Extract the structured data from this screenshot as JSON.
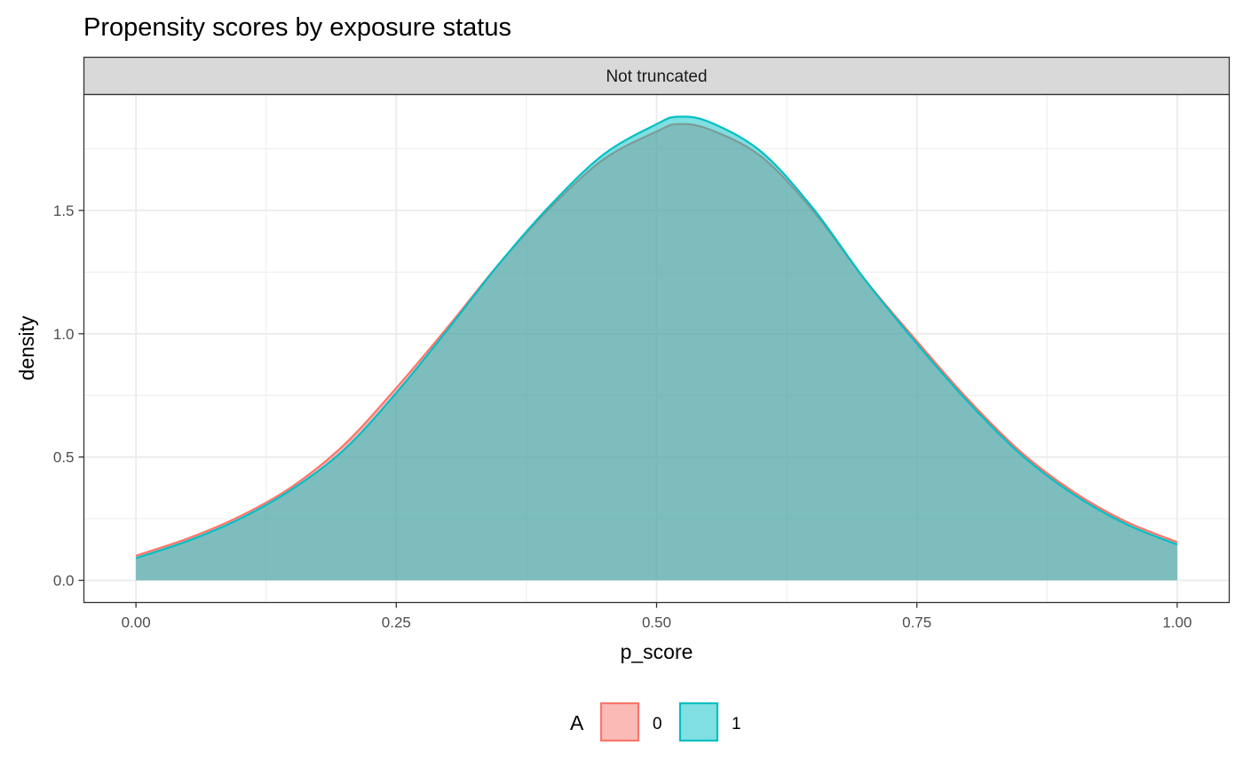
{
  "chart_data": {
    "type": "area",
    "title": "Propensity scores by exposure status",
    "facet_label": "Not truncated",
    "xlabel": "p_score",
    "ylabel": "density",
    "xlim": [
      -0.05,
      1.05
    ],
    "ylim": [
      -0.09,
      1.97
    ],
    "x_ticks": [
      0.0,
      0.25,
      0.5,
      0.75,
      1.0
    ],
    "x_tick_labels": [
      "0.00",
      "0.25",
      "0.50",
      "0.75",
      "1.00"
    ],
    "y_ticks": [
      0.0,
      0.5,
      1.0,
      1.5
    ],
    "y_tick_labels": [
      "0.0",
      "0.5",
      "1.0",
      "1.5"
    ],
    "grid": true,
    "legend_title": "A",
    "legend_position": "bottom",
    "x": [
      0.0,
      0.05,
      0.1,
      0.15,
      0.2,
      0.25,
      0.3,
      0.35,
      0.4,
      0.45,
      0.5,
      0.52,
      0.55,
      0.6,
      0.65,
      0.7,
      0.75,
      0.8,
      0.85,
      0.9,
      0.95,
      1.0
    ],
    "series": [
      {
        "name": "0",
        "color": "#F8766D",
        "fill": "#F8766D",
        "values": [
          0.1,
          0.17,
          0.26,
          0.38,
          0.55,
          0.78,
          1.03,
          1.29,
          1.52,
          1.71,
          1.82,
          1.85,
          1.83,
          1.72,
          1.5,
          1.22,
          0.97,
          0.73,
          0.52,
          0.36,
          0.24,
          0.155
        ]
      },
      {
        "name": "1",
        "color": "#00BFC4",
        "fill": "#00BFC4",
        "values": [
          0.09,
          0.16,
          0.25,
          0.37,
          0.53,
          0.76,
          1.02,
          1.29,
          1.53,
          1.73,
          1.85,
          1.88,
          1.86,
          1.74,
          1.51,
          1.22,
          0.96,
          0.72,
          0.51,
          0.35,
          0.23,
          0.145
        ]
      }
    ]
  }
}
